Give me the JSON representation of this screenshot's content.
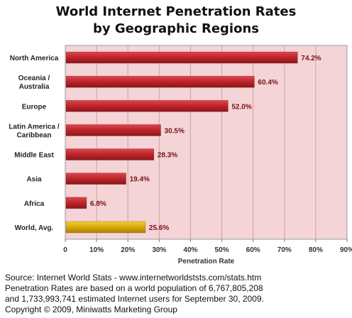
{
  "chart_data": {
    "type": "bar",
    "orientation": "horizontal",
    "title": "World Internet Penetration Rates",
    "subtitle": "by Geographic Regions",
    "xlabel": "Penetration Rate",
    "ylabel": "",
    "xlim": [
      0,
      90
    ],
    "xticks": [
      "0",
      "10%",
      "20%",
      "30%",
      "40%",
      "50%",
      "60%",
      "70%",
      "80%",
      "90%"
    ],
    "categories": [
      [
        "North America"
      ],
      [
        "Oceania  /",
        "Australia"
      ],
      [
        "Europe"
      ],
      [
        "Latin America /",
        "Caribbean"
      ],
      [
        "Middle East"
      ],
      [
        "Asia"
      ],
      [
        "Africa"
      ],
      [
        "World, Avg."
      ]
    ],
    "values": [
      74.2,
      60.4,
      52.0,
      30.5,
      28.3,
      19.4,
      6.8,
      25.6
    ],
    "value_labels": [
      "74.2%",
      "60.4%",
      "52.0%",
      "30.5%",
      "28.3%",
      "19.4%",
      "6.8%",
      "25.6%"
    ],
    "colors": [
      "#b52226",
      "#b52226",
      "#b52226",
      "#b52226",
      "#b52226",
      "#b52226",
      "#b52226",
      "#d9aa06"
    ],
    "grid": true,
    "plot_background": "#f4d4d7",
    "label_color": "#7a1016"
  },
  "footer": {
    "line1": "Source: Internet World Stats - www.internetworldststs.com/stats.htm",
    "line2": "Penetration Rates are based on a world population of 6,767,805,208",
    "line3": "and 1,733,993,741 estimated Internet users for September 30, 2009.",
    "line4": "Copyright © 2009, Miniwatts Marketing Group"
  }
}
